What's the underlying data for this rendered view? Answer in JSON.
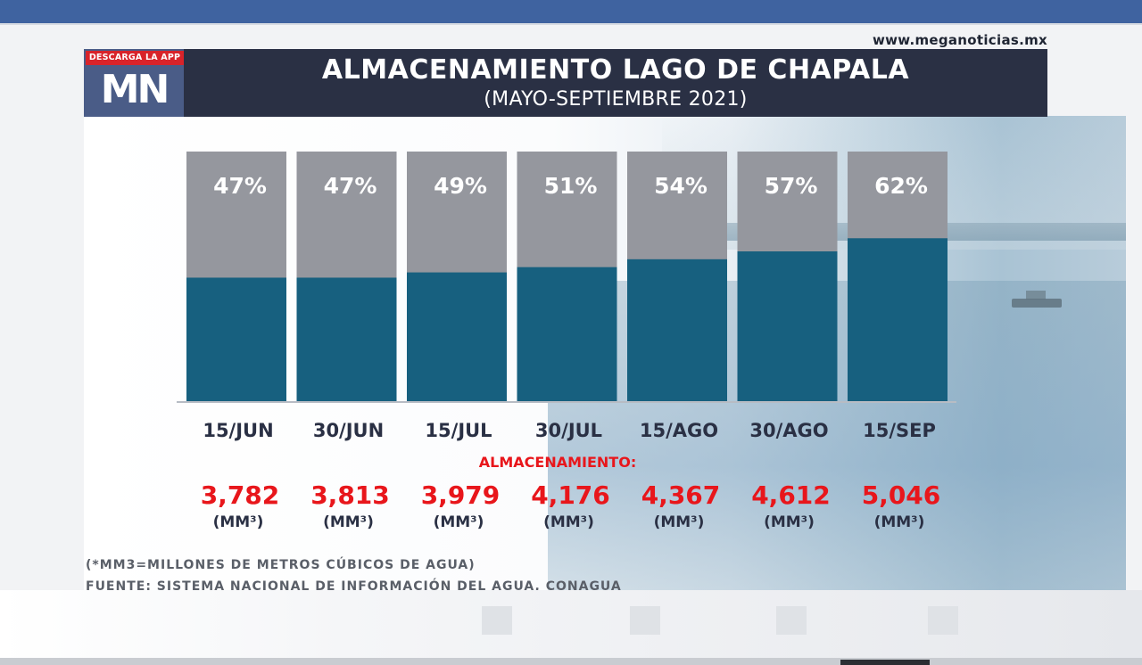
{
  "site": {
    "url": "www.meganoticias.mx"
  },
  "brand": {
    "app_badge": "DESCARGA LA APP",
    "logo": "MN"
  },
  "chart_data": {
    "type": "bar",
    "stacked": true,
    "title": "ALMACENAMIENTO LAGO DE CHAPALA",
    "subtitle": "(MAYO-SEPTIEMBRE 2021)",
    "categories": [
      "15/JUN",
      "30/JUN",
      "15/JUL",
      "30/JUL",
      "15/AGO",
      "30/AGO",
      "15/SEP"
    ],
    "percent_labels": [
      "47%",
      "47%",
      "49%",
      "51%",
      "54%",
      "57%",
      "62%"
    ],
    "series": [
      {
        "values": [
          47,
          47,
          49,
          51,
          54,
          57,
          62
        ]
      },
      {
        "values": [
          53,
          53,
          51,
          49,
          46,
          43,
          38
        ]
      }
    ],
    "ylim": [
      0,
      100
    ],
    "storage_label": "ALMACENAMIENTO:",
    "storage_values": [
      "3,782",
      "3,813",
      "3,979",
      "4,176",
      "4,367",
      "4,612",
      "5,046"
    ],
    "storage_unit": "(MM³)",
    "colors": {
      "filled": "#17607f",
      "remaining": "#95979e",
      "storage_text": "#e8161b",
      "axis_text": "#2a3044"
    },
    "grid": false,
    "legend": "none"
  },
  "footnotes": {
    "note": "(*MM3=MILLONES DE METROS CÚBICOS DE AGUA)",
    "source": "FUENTE:  SISTEMA NACIONAL DE INFORMACIÓN DEL AGUA, CONAGUA"
  }
}
